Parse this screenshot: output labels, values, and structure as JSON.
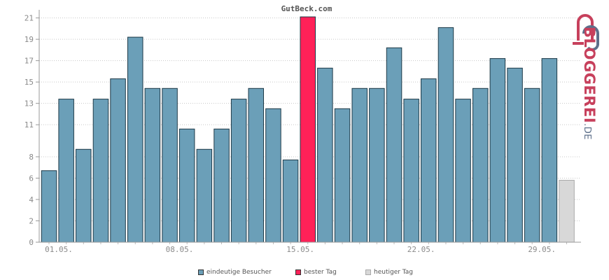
{
  "chart_data": {
    "type": "bar",
    "title": "GutBeck.com",
    "xlabel": "",
    "ylabel": "",
    "ylim": [
      0,
      21.5
    ],
    "y_ticks": [
      0,
      2,
      4,
      6,
      8,
      11,
      13,
      15,
      17,
      19,
      21
    ],
    "x_tick_labels": [
      "01.05.",
      "08.05.",
      "15.05.",
      "22.05.",
      "29.05."
    ],
    "x_tick_indices": [
      1,
      8,
      15,
      22,
      29
    ],
    "grid": true,
    "legend_position": "bottom",
    "values": [
      6.7,
      13.4,
      8.7,
      13.4,
      15.3,
      19.2,
      14.4,
      14.4,
      10.6,
      8.7,
      10.6,
      13.4,
      14.4,
      12.5,
      7.7,
      21.1,
      16.3,
      12.5,
      14.4,
      14.4,
      18.2,
      13.4,
      15.3,
      20.1,
      13.4,
      14.4,
      17.2,
      16.3,
      14.4,
      17.2,
      5.8
    ],
    "bar_kinds": [
      "n",
      "n",
      "n",
      "n",
      "n",
      "n",
      "n",
      "n",
      "n",
      "n",
      "n",
      "n",
      "n",
      "n",
      "n",
      "best",
      "n",
      "n",
      "n",
      "n",
      "n",
      "n",
      "n",
      "n",
      "n",
      "n",
      "n",
      "n",
      "n",
      "n",
      "today"
    ],
    "series": [
      {
        "name": "eindeutige Besucher",
        "color": "#6b9fb8"
      },
      {
        "name": "bester Tag",
        "color": "#ff2158"
      },
      {
        "name": "heutiger Tag",
        "color": "#d8d8d8"
      }
    ]
  },
  "brand": {
    "name": "BLOGGEREI",
    "tld": ".DE",
    "icon": "bloggerei-logo-icon"
  }
}
